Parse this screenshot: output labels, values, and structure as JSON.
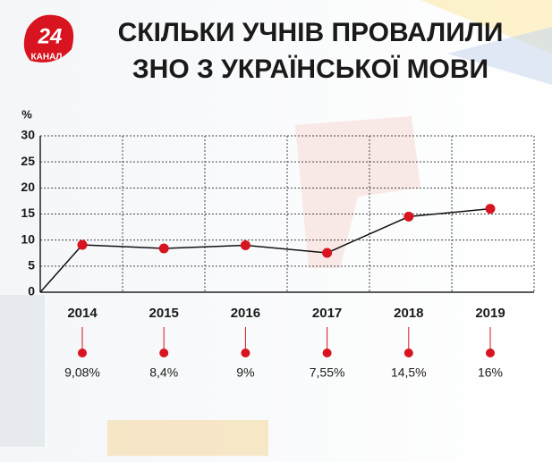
{
  "logo": {
    "number": "24",
    "name": "КАНАЛ"
  },
  "chart_data": {
    "type": "line",
    "title": [
      "СКІЛЬКИ УЧНІВ ПРОВАЛИЛИ",
      "ЗНО З УКРАЇНСЬКОЇ МОВИ"
    ],
    "y_label": "%",
    "categories": [
      "2014",
      "2015",
      "2016",
      "2017",
      "2018",
      "2019"
    ],
    "values": [
      9.08,
      8.4,
      9,
      7.55,
      14.5,
      16
    ],
    "value_labels": [
      "9,08%",
      "8,4%",
      "9%",
      "7,55%",
      "14,5%",
      "16%"
    ],
    "color": "#d7141f",
    "line_color": "#111111",
    "ylim": [
      0,
      30
    ],
    "yticks": [
      0,
      5,
      10,
      15,
      20,
      25,
      30
    ],
    "grid": true
  }
}
